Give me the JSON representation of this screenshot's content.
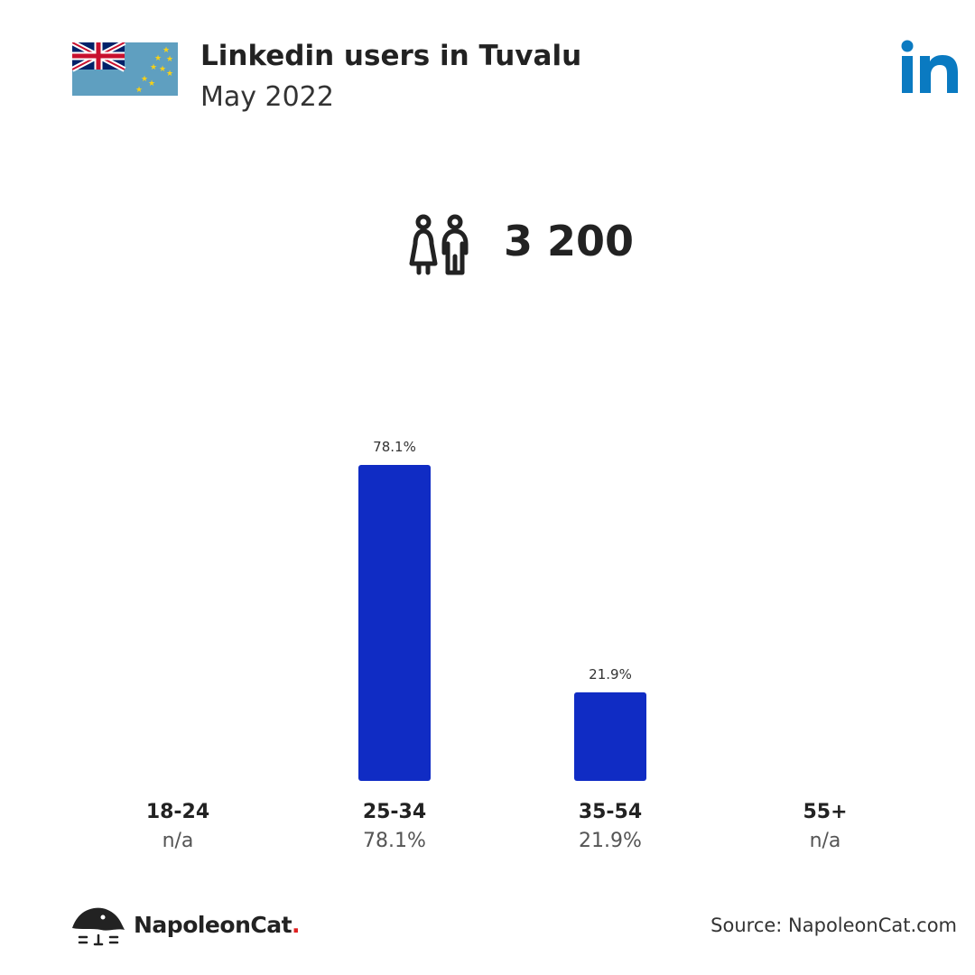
{
  "header": {
    "title": "Linkedin users in Tuvalu",
    "subtitle": "May 2022"
  },
  "total": {
    "value": "3 200",
    "icon": "users-icon"
  },
  "chart_data": {
    "type": "bar",
    "categories": [
      "18-24",
      "25-34",
      "35-54",
      "55+"
    ],
    "values": [
      null,
      78.1,
      21.9,
      null
    ],
    "data_labels": [
      "",
      "78.1%",
      "21.9%",
      ""
    ],
    "category_values": [
      "n/a",
      "78.1%",
      "21.9%",
      "n/a"
    ],
    "ylim": [
      0,
      78.1
    ],
    "grid": false,
    "bar_color": "#102cc4"
  },
  "footer": {
    "brand": "NapoleonCat",
    "brand_dot": ".",
    "source": "Source: NapoleonCat.com"
  },
  "colors": {
    "linkedin_blue": "#0a7ac1",
    "flag_blue": "#5f9fc0",
    "star_yellow": "#f7d117",
    "brand_dot": "#e02020"
  }
}
